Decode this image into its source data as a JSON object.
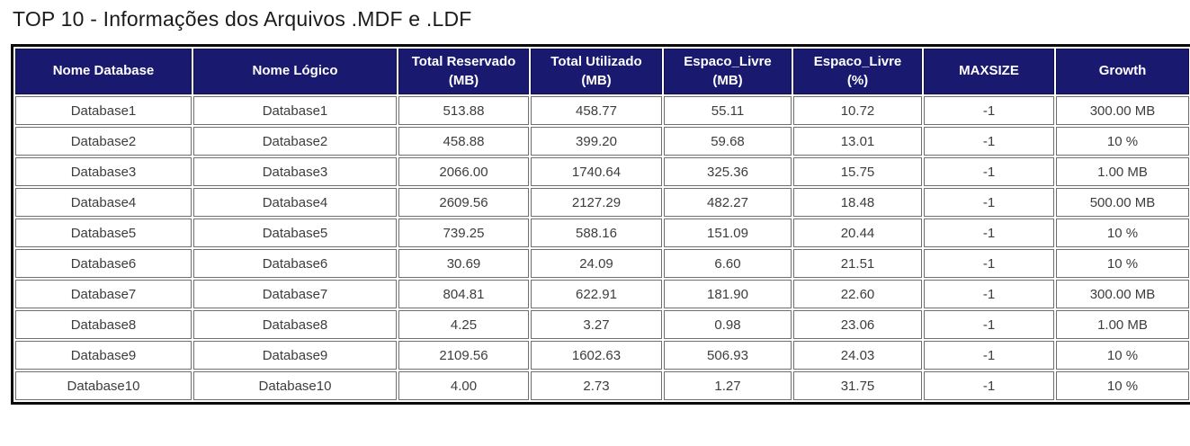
{
  "page_title": "TOP 10 - Informações dos Arquivos .MDF e .LDF",
  "table": {
    "columns": [
      "Nome Database",
      "Nome Lógico",
      "Total Reservado (MB)",
      "Total Utilizado (MB)",
      "Espaco_Livre (MB)",
      "Espaco_Livre (%)",
      "MAXSIZE",
      "Growth"
    ],
    "rows": [
      [
        "Database1",
        "Database1",
        "513.88",
        "458.77",
        "55.11",
        "10.72",
        "-1",
        "300.00 MB"
      ],
      [
        "Database2",
        "Database2",
        "458.88",
        "399.20",
        "59.68",
        "13.01",
        "-1",
        "10 %"
      ],
      [
        "Database3",
        "Database3",
        "2066.00",
        "1740.64",
        "325.36",
        "15.75",
        "-1",
        "1.00 MB"
      ],
      [
        "Database4",
        "Database4",
        "2609.56",
        "2127.29",
        "482.27",
        "18.48",
        "-1",
        "500.00 MB"
      ],
      [
        "Database5",
        "Database5",
        "739.25",
        "588.16",
        "151.09",
        "20.44",
        "-1",
        "10 %"
      ],
      [
        "Database6",
        "Database6",
        "30.69",
        "24.09",
        "6.60",
        "21.51",
        "-1",
        "10 %"
      ],
      [
        "Database7",
        "Database7",
        "804.81",
        "622.91",
        "181.90",
        "22.60",
        "-1",
        "300.00 MB"
      ],
      [
        "Database8",
        "Database8",
        "4.25",
        "3.27",
        "0.98",
        "23.06",
        "-1",
        "1.00 MB"
      ],
      [
        "Database9",
        "Database9",
        "2109.56",
        "1602.63",
        "506.93",
        "24.03",
        "-1",
        "10 %"
      ],
      [
        "Database10",
        "Database10",
        "4.00",
        "2.73",
        "1.27",
        "31.75",
        "-1",
        "10 %"
      ]
    ],
    "colors": {
      "header_bg": "#191970",
      "header_text": "#ffffff",
      "cell_text": "#3d3d3d",
      "cell_border": "#6e6e6e",
      "outer_border": "#0a0a0a"
    }
  }
}
